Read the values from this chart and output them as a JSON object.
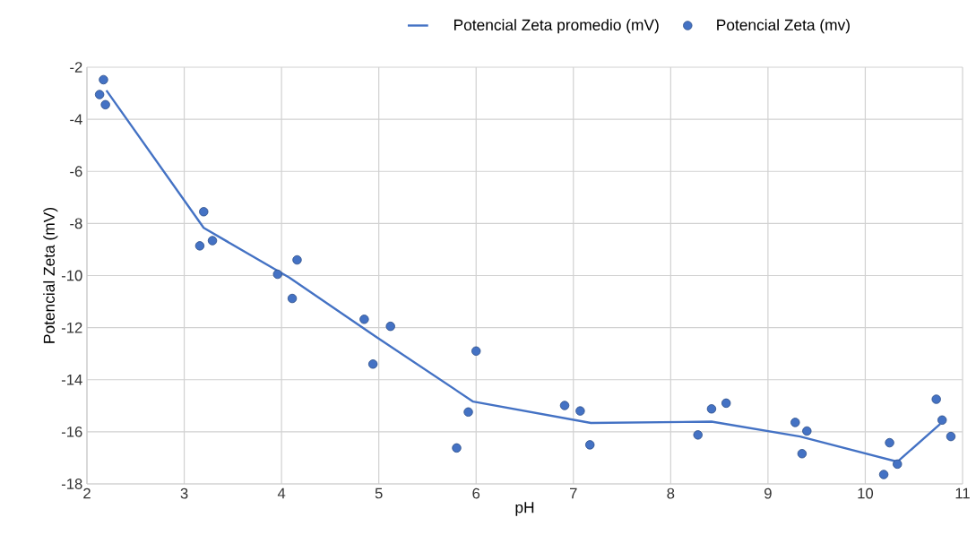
{
  "chart_data": {
    "type": "scatter",
    "xlabel": "pH",
    "ylabel": "Potencial Zeta (mV)",
    "xlim": [
      2,
      11
    ],
    "xticks": [
      2,
      3,
      4,
      5,
      6,
      7,
      8,
      9,
      10,
      11
    ],
    "ylim": [
      -18,
      -2
    ],
    "yticks": [
      -18,
      -16,
      -14,
      -12,
      -10,
      -8,
      -6,
      -4,
      -2
    ],
    "grid": true,
    "legend": "top",
    "series": [
      {
        "name": "Potencial Zeta promedio (mV)",
        "type": "line",
        "marker": "none",
        "line_style": "solid",
        "color": "#4472c4",
        "x": [
          2.2,
          3.2,
          4.08,
          4.97,
          5.97,
          7.18,
          8.42,
          9.33,
          10.33,
          10.77
        ],
        "values": [
          -2.89,
          -8.17,
          -10.08,
          -12.35,
          -14.84,
          -15.66,
          -15.61,
          -16.18,
          -17.15,
          -15.7
        ]
      },
      {
        "name": "Potencial Zeta (mv)",
        "marker": "circle",
        "color": "#4472c4",
        "x": [
          2.17,
          2.13,
          2.19,
          3.2,
          3.16,
          3.29,
          3.96,
          4.16,
          4.11,
          4.85,
          5.12,
          4.94,
          6.0,
          5.92,
          5.8,
          6.91,
          7.07,
          7.17,
          8.28,
          8.42,
          8.57,
          9.28,
          9.4,
          9.35,
          10.25,
          10.19,
          10.33,
          10.73,
          10.79,
          10.88
        ],
        "values": [
          -2.48,
          -3.05,
          -3.44,
          -7.55,
          -8.86,
          -8.66,
          -9.95,
          -9.4,
          -10.88,
          -11.68,
          -11.95,
          -13.4,
          -12.9,
          -15.24,
          -16.62,
          -14.99,
          -15.2,
          -16.5,
          -16.12,
          -15.12,
          -14.9,
          -15.64,
          -15.97,
          -16.84,
          -16.42,
          -17.64,
          -17.24,
          -14.75,
          -15.55,
          -16.18
        ]
      }
    ]
  }
}
